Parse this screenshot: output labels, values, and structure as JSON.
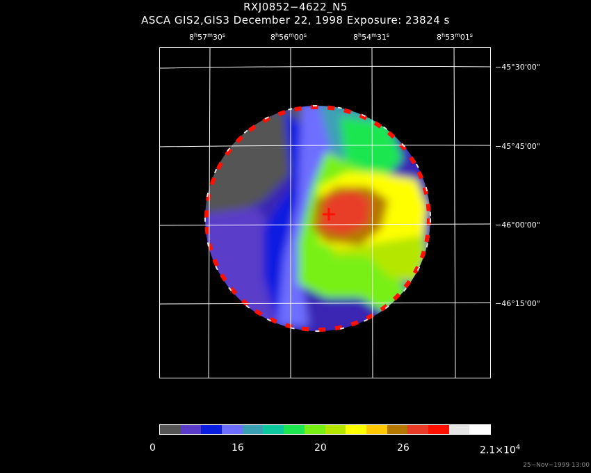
{
  "title": {
    "object": "RXJ0852−4622_N5",
    "subtitle": "ASCA GIS2,GIS3 December 22, 1998 Exposure: 23824 s"
  },
  "ra_labels": [
    {
      "h": "8",
      "m": "57",
      "s": "30"
    },
    {
      "h": "8",
      "m": "56",
      "s": "00"
    },
    {
      "h": "8",
      "m": "54",
      "s": "31"
    },
    {
      "h": "8",
      "m": "53",
      "s": "01"
    }
  ],
  "dec_labels": [
    "−45°30'00\"",
    "−45°45'00\"",
    "−46°00'00\"",
    "−46°15'00\""
  ],
  "colorbar": {
    "labels": [
      "0",
      "16",
      "20",
      "26",
      "2.1×10"
    ],
    "exponent": "4",
    "colors": [
      "#555555",
      "#5a3cc8",
      "#0a1ee0",
      "#6e6eff",
      "#3ca0b4",
      "#10c8a0",
      "#1ee650",
      "#78f014",
      "#b4e600",
      "#ffff00",
      "#ffc800",
      "#b47800",
      "#e83c28",
      "#ff1000",
      "#e6e6e6",
      "#ffffff"
    ]
  },
  "footer": "25−Nov−1999 13:00"
}
